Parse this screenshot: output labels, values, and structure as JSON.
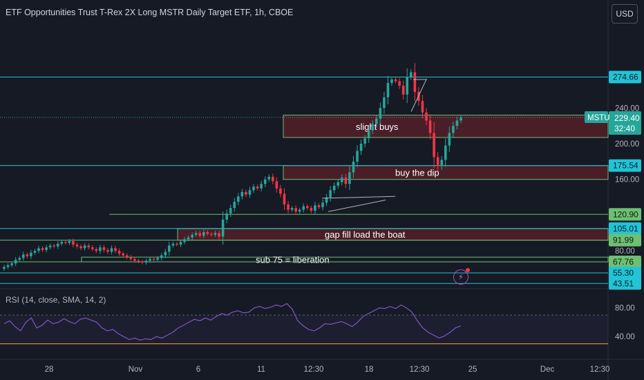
{
  "header": {
    "title": "ETF Opportunities Trust T-Rex 2X Long MSTR Daily Target ETF, 1h, CBOE",
    "currency_button": "USD"
  },
  "rsi_panel": {
    "title": "RSI (14, close, SMA, 14, 2)",
    "ticks": [
      {
        "v": 80,
        "label": "80.00"
      },
      {
        "v": 40,
        "label": "40.00"
      }
    ]
  },
  "colors": {
    "up": "#26a69a",
    "down": "#f23645",
    "zone_fill": "#4a1e28",
    "zone_border": "#6fbf73",
    "cyan": "#22c3d6",
    "green_line": "#6fbf73",
    "rsi_line": "#7e57c2",
    "rsi_level": "#f0a830"
  },
  "chart_data": {
    "type": "candlestick",
    "symbol": "MSTU",
    "interval": "1h",
    "y_axis_ticks": [
      "240.00",
      "200.00",
      "160.00",
      "80.00"
    ],
    "x_axis_ticks": [
      "28",
      "Nov",
      "6",
      "11",
      "12:30",
      "18",
      "12:30",
      "25",
      "Dec",
      "12:30"
    ],
    "price_tags": [
      {
        "label": "274.66",
        "price": 274.66,
        "kind": "cyan"
      },
      {
        "label": "229.40",
        "price": 229.4,
        "kind": "last"
      },
      {
        "label": "175.54",
        "price": 175.54,
        "kind": "cyan"
      },
      {
        "label": "120.90",
        "price": 120.9,
        "kind": "green"
      },
      {
        "label": "105.01",
        "price": 105.01,
        "kind": "cyan"
      },
      {
        "label": "91.99",
        "price": 91.99,
        "kind": "green"
      },
      {
        "label": "67.76",
        "price": 67.76,
        "kind": "green"
      },
      {
        "label": "55.30",
        "price": 55.3,
        "kind": "cyan"
      },
      {
        "label": "43.51",
        "price": 43.51,
        "kind": "cyan"
      }
    ],
    "last_price": {
      "symbol": "MSTU",
      "price": "229.40",
      "countdown": "32:40"
    },
    "zones": [
      {
        "label": "slight buys",
        "top": 232,
        "bottom": 207
      },
      {
        "label": "buy the dip",
        "top": 175.5,
        "bottom": 160
      },
      {
        "label": "gap fill load the boat",
        "top": 105.01,
        "bottom": 91.99
      },
      {
        "label": "sub 75 = liberation",
        "top": 73,
        "bottom": 67.76
      }
    ],
    "horizontal_lines": [
      {
        "price": 274.66,
        "kind": "cyan",
        "from": 0
      },
      {
        "price": 175.54,
        "kind": "cyan",
        "from": 0
      },
      {
        "price": 120.9,
        "kind": "green",
        "from": 0.18
      },
      {
        "price": 105.01,
        "kind": "cyan",
        "from": 0
      },
      {
        "price": 91.99,
        "kind": "green",
        "from": 0
      },
      {
        "price": 67.76,
        "kind": "green",
        "from": 0
      },
      {
        "price": 55.3,
        "kind": "cyan",
        "from": 0
      },
      {
        "price": 43.51,
        "kind": "cyan",
        "from": 0
      }
    ],
    "close_series": [
      62,
      64,
      66,
      70,
      72,
      76,
      74,
      78,
      80,
      83,
      81,
      84,
      86,
      85,
      88,
      90,
      89,
      91,
      87,
      85,
      83,
      86,
      84,
      82,
      80,
      84,
      81,
      79,
      83,
      80,
      77,
      75,
      73,
      71,
      69,
      68,
      67,
      69,
      71,
      70,
      72,
      75,
      79,
      86,
      88,
      87,
      90,
      93,
      95,
      98,
      100,
      97,
      101,
      99,
      98,
      100,
      96,
      115,
      122,
      128,
      135,
      141,
      146,
      143,
      148,
      152,
      150,
      155,
      160,
      163,
      158,
      150,
      144,
      132,
      126,
      128,
      124,
      126,
      130,
      128,
      125,
      131,
      129,
      134,
      140,
      148,
      153,
      157,
      162,
      155,
      168,
      180,
      192,
      200,
      206,
      215,
      222,
      228,
      240,
      252,
      268,
      272,
      270,
      265,
      255,
      275,
      280,
      258,
      248,
      235,
      226,
      212,
      185,
      175,
      182,
      198,
      212,
      220,
      226,
      229.4
    ],
    "price_range": [
      36,
      330
    ],
    "rsi_series": [
      58,
      62,
      54,
      48,
      60,
      66,
      52,
      56,
      63,
      58,
      60,
      65,
      61,
      58,
      64,
      66,
      63,
      60,
      52,
      48,
      50,
      44,
      40,
      36,
      38,
      35,
      37,
      36,
      40,
      38,
      42,
      46,
      52,
      56,
      60,
      64,
      62,
      66,
      63,
      68,
      72,
      70,
      74,
      76,
      73,
      74,
      80,
      82,
      79,
      81,
      84,
      82,
      86,
      78,
      62,
      55,
      50,
      48,
      52,
      58,
      57,
      59,
      61,
      58,
      54,
      60,
      68,
      72,
      76,
      80,
      79,
      82,
      79,
      84,
      80,
      74,
      62,
      52,
      46,
      42,
      38,
      41,
      46,
      52,
      55
    ],
    "rsi_levels": [
      70,
      30
    ]
  }
}
